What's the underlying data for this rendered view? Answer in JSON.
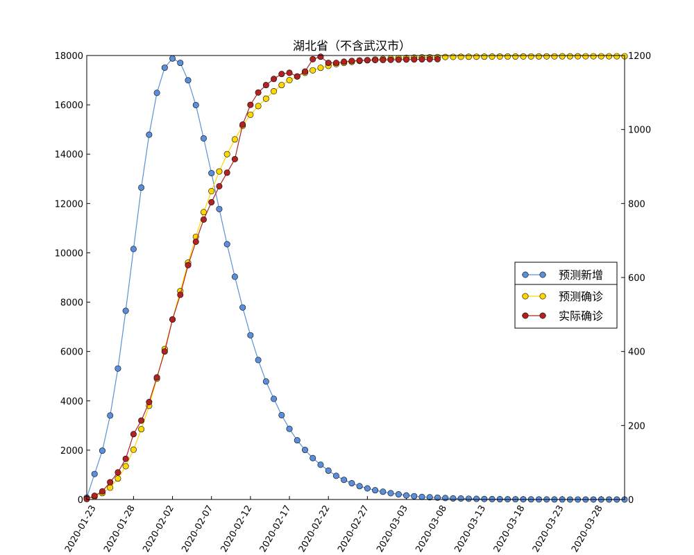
{
  "chart_data": {
    "type": "line",
    "title": "湖北省（不含武汉市）",
    "x_start": "2020-01-22",
    "x_tick_labels": [
      "2020-01-23",
      "2020-01-28",
      "2020-02-02",
      "2020-02-07",
      "2020-02-12",
      "2020-02-17",
      "2020-02-22",
      "2020-02-27",
      "2020-03-03",
      "2020-03-08",
      "2020-03-13",
      "2020-03-18",
      "2020-03-23",
      "2020-03-28"
    ],
    "left_axis": {
      "ylim": [
        0,
        18000
      ],
      "ticks": [
        0,
        2000,
        4000,
        6000,
        8000,
        10000,
        12000,
        14000,
        16000,
        18000
      ]
    },
    "right_axis": {
      "ylim": [
        0,
        1200
      ],
      "ticks": [
        0,
        200,
        400,
        600,
        800,
        1000,
        1200
      ]
    },
    "legend_location": "center-right",
    "grid": false,
    "series": [
      {
        "name": "预测新增",
        "axis": "right",
        "color": "#5b8fd9",
        "values": [
          5,
          69,
          132,
          227,
          354,
          510,
          677,
          843,
          986,
          1099,
          1167,
          1192,
          1180,
          1133,
          1066,
          976,
          882,
          785,
          690,
          602,
          519,
          444,
          377,
          319,
          272,
          228,
          191,
          160,
          134,
          112,
          94,
          78,
          64,
          53,
          44,
          36,
          30,
          25,
          21,
          17,
          14,
          11,
          9,
          7,
          6,
          5,
          4,
          3,
          2.7,
          2.2,
          1.8,
          1.4,
          1.1,
          0.9,
          0.7,
          0.6,
          0.5,
          0.4,
          0.3,
          0.25,
          0.2,
          0.15,
          0.1,
          0.08,
          0.06,
          0.05,
          0.04,
          0.03,
          0.02,
          0.01
        ]
      },
      {
        "name": "预测确诊",
        "color": "#ffd700",
        "values": [
          30,
          120,
          260,
          480,
          850,
          1350,
          2020,
          2850,
          3800,
          4900,
          6100,
          7300,
          8450,
          9600,
          10650,
          11650,
          12500,
          13300,
          14000,
          14600,
          15150,
          15600,
          15950,
          16250,
          16550,
          16800,
          17000,
          17150,
          17300,
          17400,
          17500,
          17580,
          17650,
          17700,
          17740,
          17780,
          17810,
          17840,
          17860,
          17880,
          17895,
          17905,
          17915,
          17925,
          17930,
          17935,
          17940,
          17945,
          17948,
          17950,
          17952,
          17954,
          17956,
          17958,
          17960,
          17961,
          17962,
          17963,
          17964,
          17965,
          17966,
          17967,
          17968,
          17969,
          17970,
          17970,
          17970,
          17970,
          17970,
          17970
        ]
      },
      {
        "name": "实际确诊",
        "color": "#b22222",
        "values": [
          20,
          150,
          330,
          700,
          1100,
          1650,
          2650,
          3200,
          3950,
          4950,
          6000,
          7300,
          8300,
          9500,
          10450,
          11350,
          12050,
          12700,
          13250,
          13800,
          15200,
          16000,
          16500,
          16800,
          17050,
          17250,
          17300,
          17150,
          17350,
          17850,
          17950,
          17700,
          17700,
          17750,
          17780,
          17800,
          17810,
          17815,
          17820,
          17825,
          17830,
          17835,
          17840,
          17845,
          17850,
          17850
        ]
      }
    ]
  }
}
